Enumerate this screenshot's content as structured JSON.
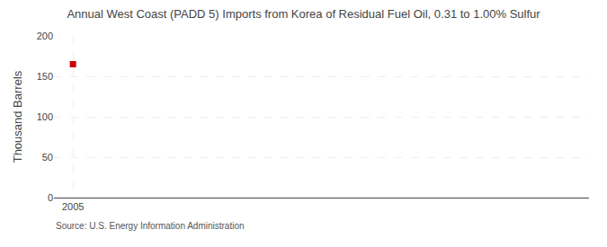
{
  "chart_data": {
    "type": "scatter",
    "title": "Annual West Coast (PADD 5) Imports from Korea of Residual Fuel Oil, 0.31 to 1.00% Sulfur",
    "ylabel": "Thousand Barrels",
    "annotations": [
      "Source: U.S. Energy Information Administration"
    ],
    "x": [
      2005
    ],
    "values": [
      165
    ],
    "color": "#cc0000",
    "marker": "square",
    "xlim": [
      2004.3,
      2024
    ],
    "xticks": [
      2005
    ],
    "ylim": [
      0,
      200
    ],
    "yticks": [
      0,
      50,
      100,
      150,
      200
    ],
    "grid": true
  }
}
